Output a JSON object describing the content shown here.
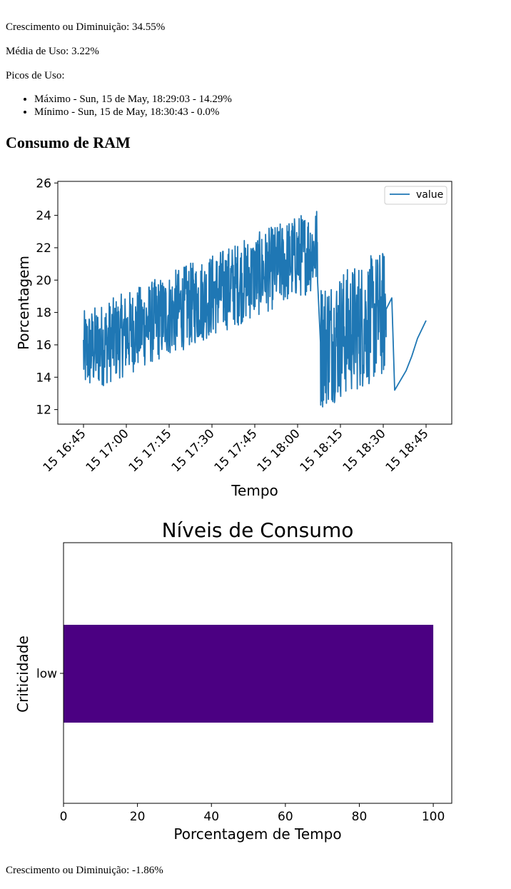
{
  "cpu_stats": {
    "growth": "Crescimento ou Diminuição: 34.55%",
    "average": "Média de Uso: 3.22%",
    "peaks_label": "Picos de Uso:",
    "peaks": [
      "Máximo - Sun, 15 de May, 18:29:03 - 14.29%",
      "Mínimo - Sun, 15 de May, 18:30:43 - 0.0%"
    ]
  },
  "ram_section": {
    "heading": "Consumo de RAM",
    "growth": "Crescimento ou Diminuição: -1.86%"
  },
  "colors": {
    "line": "#1f77b4",
    "bar": "#4b0082"
  },
  "chart_data": [
    {
      "type": "line",
      "title": "",
      "xlabel": "Tempo",
      "ylabel": "Porcentagem",
      "ylim": [
        11.1,
        26.1
      ],
      "yticks": [
        12,
        14,
        16,
        18,
        20,
        22,
        24,
        26
      ],
      "xlim_minutes": [
        16.6,
        18.9
      ],
      "xtick_labels": [
        "15 16:45",
        "15 17:00",
        "15 17:15",
        "15 17:30",
        "15 17:45",
        "15 18:00",
        "15 18:15",
        "15 18:30",
        "15 18:45"
      ],
      "legend": "upper-right",
      "series": [
        {
          "name": "value",
          "segments": [
            {
              "t_start": "16:45",
              "t_end": "18:07",
              "noisy": true,
              "base_start": 15.5,
              "base_end": 22.0,
              "amplitude": 2.6
            },
            {
              "t_start": "18:08",
              "t_end": "18:31",
              "noisy": true,
              "base_start": 16.0,
              "base_end": 18.0,
              "amplitude": 4.0
            }
          ],
          "points": [
            [
              "18:31",
              16.5
            ],
            [
              "18:31",
              18.2
            ],
            [
              "18:33",
              18.9
            ],
            [
              "18:34",
              13.2
            ],
            [
              "18:38",
              14.4
            ],
            [
              "18:40",
              15.3
            ],
            [
              "18:42",
              16.4
            ],
            [
              "18:45",
              17.5
            ]
          ]
        }
      ]
    },
    {
      "type": "bar",
      "orientation": "horizontal",
      "title": "Níveis de Consumo",
      "xlabel": "Porcentagem de Tempo",
      "ylabel": "Criticidade",
      "categories": [
        "low"
      ],
      "values": [
        100
      ],
      "xlim": [
        0,
        105
      ],
      "xticks": [
        0,
        20,
        40,
        60,
        80,
        100
      ]
    }
  ]
}
